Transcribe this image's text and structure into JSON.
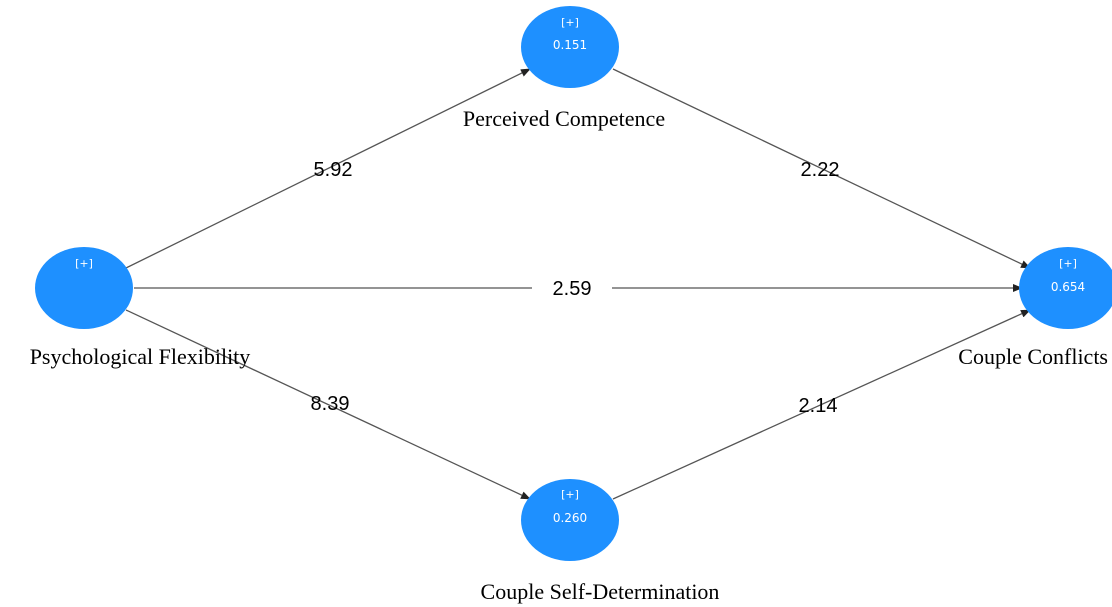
{
  "colors": {
    "node": "#1E90FF",
    "line": "#555555"
  },
  "nodes": {
    "psychological_flexibility": {
      "label": "Psychological Flexibility",
      "marker": "[+]",
      "value": ""
    },
    "perceived_competence": {
      "label": "Perceived Competence",
      "marker": "[+]",
      "value": "0.151"
    },
    "couple_self_determination": {
      "label": "Couple Self-Determination",
      "marker": "[+]",
      "value": "0.260"
    },
    "couple_conflicts": {
      "label": "Couple Conflicts",
      "marker": "[+]",
      "value": "0.654"
    }
  },
  "paths": {
    "pf_to_pc": {
      "from": "Psychological Flexibility",
      "to": "Perceived Competence",
      "coefficient": "5.92"
    },
    "pf_to_cc": {
      "from": "Psychological Flexibility",
      "to": "Couple Conflicts",
      "coefficient": "2.59"
    },
    "pf_to_csd": {
      "from": "Psychological Flexibility",
      "to": "Couple Self-Determination",
      "coefficient": "8.39"
    },
    "pc_to_cc": {
      "from": "Perceived Competence",
      "to": "Couple Conflicts",
      "coefficient": "2.22"
    },
    "csd_to_cc": {
      "from": "Couple Self-Determination",
      "to": "Couple Conflicts",
      "coefficient": "2.14"
    }
  }
}
